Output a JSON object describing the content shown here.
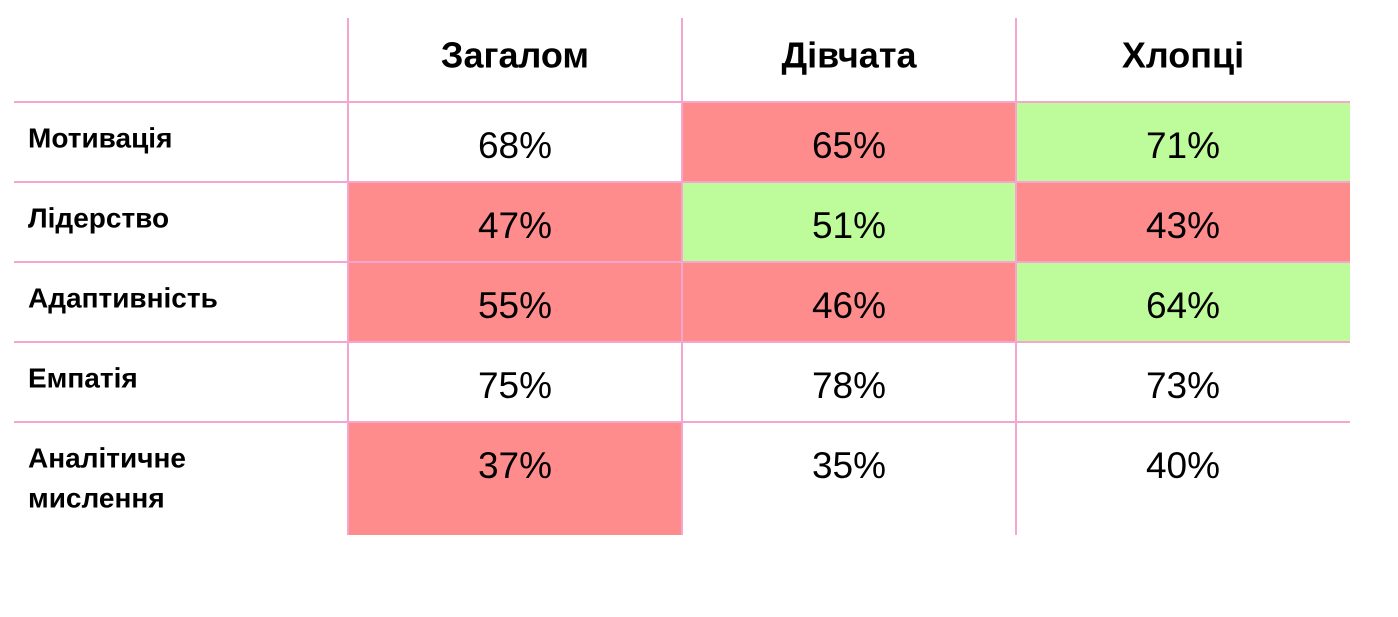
{
  "table": {
    "header": [
      "Загалом",
      "Дівчата",
      "Хлопці"
    ],
    "rows": [
      {
        "label": [
          "Мотивація"
        ],
        "cells": [
          "68%",
          "65%",
          "71%"
        ],
        "fills": [
          null,
          "#ff8c8c",
          "#bdfb9b"
        ]
      },
      {
        "label": [
          "Лідерство"
        ],
        "cells": [
          "47%",
          "51%",
          "43%"
        ],
        "fills": [
          "#ff8c8c",
          "#bdfb9b",
          "#ff8c8c"
        ]
      },
      {
        "label": [
          "Адаптивність"
        ],
        "cells": [
          "55%",
          "46%",
          "64%"
        ],
        "fills": [
          "#ff8c8c",
          "#ff8c8c",
          "#bdfb9b"
        ]
      },
      {
        "label": [
          "Емпатія"
        ],
        "cells": [
          "75%",
          "78%",
          "73%"
        ],
        "fills": [
          null,
          null,
          null
        ]
      },
      {
        "label": [
          "Аналітичне",
          "мислення"
        ],
        "cells": [
          "37%",
          "35%",
          "40%"
        ],
        "fills": [
          "#ff8c8c",
          null,
          null
        ]
      }
    ]
  }
}
